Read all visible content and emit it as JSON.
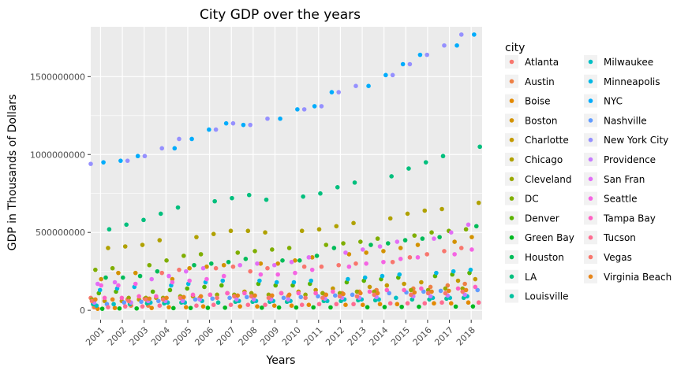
{
  "chart_data": {
    "type": "scatter",
    "title": "City GDP over the years",
    "xlabel": "Years",
    "ylabel": "GDP in Thousands of Dollars",
    "legend_title": "city",
    "legend_position": "right",
    "grid": true,
    "x_ticks": [
      "2001",
      "2002",
      "2003",
      "2004",
      "2005",
      "2006",
      "2007",
      "2008",
      "2009",
      "2010",
      "2011",
      "2012",
      "2013",
      "2014",
      "2015",
      "2016",
      "2017",
      "2018"
    ],
    "y_ticks": [
      0,
      500000000,
      1000000000,
      1500000000
    ],
    "y_tick_labels": [
      "0",
      "500000000",
      "1000000000",
      "1500000000"
    ],
    "ylim": [
      -60000000,
      1820000000
    ],
    "xlim": [
      2000.55,
      2018.5
    ],
    "series": [
      {
        "name": "Atlanta",
        "color": "#F8766D",
        "values": [
          80000000,
          70000000,
          75000000,
          240000000,
          260000000,
          270000000,
          280000000,
          250000000,
          270000000,
          280000000,
          280000000,
          290000000,
          300000000,
          310000000,
          340000000,
          360000000,
          380000000,
          400000000
        ]
      },
      {
        "name": "Austin",
        "color": "#EE8045",
        "values": [
          20000000,
          30000000,
          30000000,
          60000000,
          70000000,
          80000000,
          60000000,
          70000000,
          80000000,
          90000000,
          100000000,
          110000000,
          120000000,
          130000000,
          140000000,
          150000000,
          160000000,
          170000000
        ]
      },
      {
        "name": "Boise",
        "color": "#E38900",
        "values": [
          10000000,
          15000000,
          15000000,
          20000000,
          20000000,
          25000000,
          25000000,
          25000000,
          30000000,
          30000000,
          35000000,
          35000000,
          35000000,
          40000000,
          40000000,
          45000000,
          45000000,
          50000000
        ]
      },
      {
        "name": "Boston",
        "color": "#D39200",
        "values": [
          200000000,
          240000000,
          240000000,
          200000000,
          270000000,
          280000000,
          290000000,
          300000000,
          300000000,
          320000000,
          340000000,
          360000000,
          370000000,
          380000000,
          400000000,
          420000000,
          440000000,
          470000000
        ]
      },
      {
        "name": "Charlotte",
        "color": "#C49A00",
        "values": [
          60000000,
          60000000,
          70000000,
          80000000,
          90000000,
          100000000,
          110000000,
          120000000,
          110000000,
          120000000,
          130000000,
          140000000,
          150000000,
          160000000,
          170000000,
          180000000,
          190000000,
          200000000
        ]
      },
      {
        "name": "Chicago",
        "color": "#B0A100",
        "values": [
          400000000,
          410000000,
          420000000,
          450000000,
          470000000,
          490000000,
          510000000,
          510000000,
          500000000,
          510000000,
          520000000,
          540000000,
          560000000,
          590000000,
          620000000,
          640000000,
          650000000,
          690000000
        ]
      },
      {
        "name": "Cleveland",
        "color": "#99A800",
        "values": [
          70000000,
          80000000,
          80000000,
          80000000,
          90000000,
          100000000,
          100000000,
          110000000,
          100000000,
          100000000,
          110000000,
          110000000,
          120000000,
          120000000,
          130000000,
          130000000,
          140000000,
          140000000
        ]
      },
      {
        "name": "DC",
        "color": "#7FAE00",
        "values": [
          260000000,
          270000000,
          290000000,
          320000000,
          350000000,
          360000000,
          370000000,
          380000000,
          390000000,
          400000000,
          420000000,
          430000000,
          440000000,
          460000000,
          480000000,
          500000000,
          510000000,
          520000000
        ]
      },
      {
        "name": "Denver",
        "color": "#5BB300",
        "values": [
          110000000,
          120000000,
          120000000,
          130000000,
          140000000,
          150000000,
          160000000,
          170000000,
          160000000,
          160000000,
          170000000,
          180000000,
          190000000,
          200000000,
          210000000,
          220000000,
          230000000,
          240000000
        ]
      },
      {
        "name": "Green Bay",
        "color": "#00B81F",
        "values": [
          10000000,
          12000000,
          12000000,
          14000000,
          15000000,
          16000000,
          17000000,
          17000000,
          18000000,
          18000000,
          19000000,
          19000000,
          20000000,
          21000000,
          22000000,
          23000000,
          24000000,
          25000000
        ]
      },
      {
        "name": "Houston",
        "color": "#00BC59",
        "values": [
          210000000,
          210000000,
          220000000,
          250000000,
          290000000,
          300000000,
          310000000,
          330000000,
          320000000,
          320000000,
          350000000,
          400000000,
          420000000,
          430000000,
          450000000,
          460000000,
          470000000,
          540000000
        ]
      },
      {
        "name": "LA",
        "color": "#00BF7D",
        "values": [
          520000000,
          550000000,
          580000000,
          620000000,
          660000000,
          700000000,
          720000000,
          740000000,
          710000000,
          730000000,
          750000000,
          790000000,
          820000000,
          860000000,
          910000000,
          950000000,
          990000000,
          1050000000
        ]
      },
      {
        "name": "Louisville",
        "color": "#00C19F",
        "values": [
          40000000,
          40000000,
          45000000,
          45000000,
          50000000,
          50000000,
          55000000,
          55000000,
          55000000,
          55000000,
          60000000,
          60000000,
          65000000,
          65000000,
          70000000,
          70000000,
          75000000,
          80000000
        ]
      },
      {
        "name": "Milwaukee",
        "color": "#00BFC4",
        "values": [
          30000000,
          40000000,
          50000000,
          50000000,
          50000000,
          60000000,
          60000000,
          60000000,
          60000000,
          60000000,
          60000000,
          70000000,
          70000000,
          70000000,
          80000000,
          80000000,
          80000000,
          90000000
        ]
      },
      {
        "name": "Minneapolis",
        "color": "#00B8E5",
        "values": [
          130000000,
          140000000,
          150000000,
          160000000,
          170000000,
          180000000,
          190000000,
          190000000,
          180000000,
          180000000,
          190000000,
          200000000,
          210000000,
          220000000,
          230000000,
          240000000,
          250000000,
          260000000
        ]
      },
      {
        "name": "NYC",
        "color": "#00ACFC",
        "values": [
          950000000,
          960000000,
          990000000,
          1040000000,
          1100000000,
          1160000000,
          1200000000,
          1190000000,
          1230000000,
          1290000000,
          1310000000,
          1400000000,
          1440000000,
          1510000000,
          1580000000,
          1640000000,
          1700000000,
          1770000000
        ]
      },
      {
        "name": "Nashville",
        "color": "#619CFF",
        "values": [
          40000000,
          50000000,
          55000000,
          60000000,
          70000000,
          75000000,
          80000000,
          85000000,
          80000000,
          85000000,
          90000000,
          95000000,
          100000000,
          110000000,
          115000000,
          120000000,
          125000000,
          130000000
        ]
      },
      {
        "name": "New York City",
        "color": "#9590FF",
        "values": [
          940000000,
          960000000,
          990000000,
          1040000000,
          1100000000,
          1160000000,
          1200000000,
          1190000000,
          1230000000,
          1290000000,
          1310000000,
          1400000000,
          1440000000,
          1510000000,
          1580000000,
          1640000000,
          1700000000,
          1770000000
        ]
      },
      {
        "name": "Providence",
        "color": "#C77CFF",
        "values": [
          50000000,
          50000000,
          60000000,
          60000000,
          60000000,
          70000000,
          70000000,
          70000000,
          70000000,
          70000000,
          75000000,
          80000000,
          80000000,
          85000000,
          90000000,
          90000000,
          95000000,
          100000000
        ]
      },
      {
        "name": "San Fran",
        "color": "#E26EF7",
        "values": [
          170000000,
          180000000,
          200000000,
          220000000,
          250000000,
          270000000,
          290000000,
          300000000,
          290000000,
          310000000,
          340000000,
          370000000,
          390000000,
          410000000,
          440000000,
          460000000,
          500000000,
          550000000
        ]
      },
      {
        "name": "Seattle",
        "color": "#F564E3",
        "values": [
          160000000,
          160000000,
          170000000,
          180000000,
          190000000,
          200000000,
          220000000,
          230000000,
          230000000,
          240000000,
          260000000,
          280000000,
          300000000,
          310000000,
          330000000,
          340000000,
          360000000,
          390000000
        ]
      },
      {
        "name": "Tampa Bay",
        "color": "#FF61C3",
        "values": [
          80000000,
          80000000,
          90000000,
          90000000,
          100000000,
          100000000,
          110000000,
          110000000,
          110000000,
          110000000,
          110000000,
          120000000,
          120000000,
          130000000,
          130000000,
          140000000,
          140000000,
          150000000
        ]
      },
      {
        "name": "Tucson",
        "color": "#FF6C91",
        "values": [
          20000000,
          25000000,
          25000000,
          30000000,
          30000000,
          35000000,
          35000000,
          35000000,
          35000000,
          35000000,
          40000000,
          40000000,
          40000000,
          45000000,
          45000000,
          45000000,
          50000000,
          50000000
        ]
      },
      {
        "name": "Vegas",
        "color": "#F8766D",
        "values": [
          60000000,
          60000000,
          70000000,
          70000000,
          80000000,
          80000000,
          90000000,
          90000000,
          80000000,
          80000000,
          80000000,
          90000000,
          90000000,
          100000000,
          100000000,
          110000000,
          110000000,
          120000000
        ]
      },
      {
        "name": "Virginia Beach",
        "color": "#E7861B",
        "values": [
          70000000,
          70000000,
          75000000,
          80000000,
          85000000,
          90000000,
          95000000,
          95000000,
          95000000,
          100000000,
          100000000,
          105000000,
          110000000,
          110000000,
          115000000,
          120000000,
          125000000,
          130000000
        ]
      }
    ]
  }
}
